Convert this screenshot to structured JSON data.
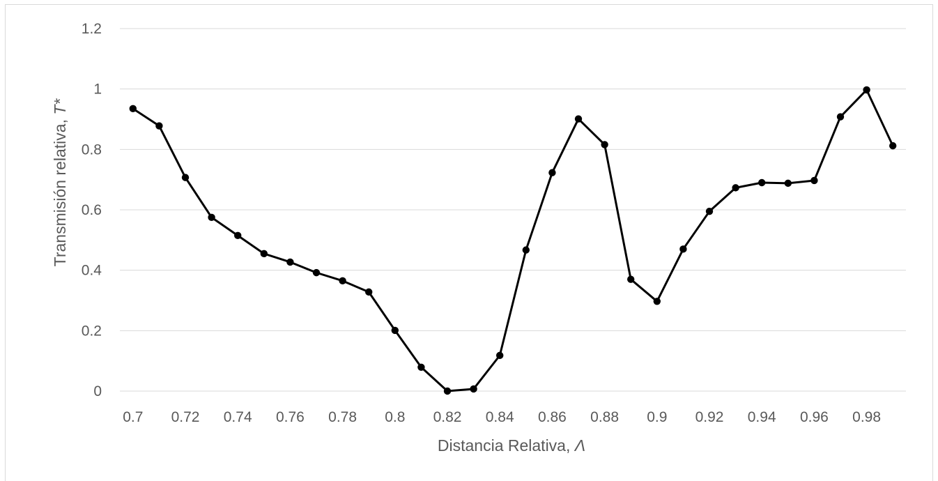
{
  "chart_data": {
    "type": "line",
    "xlabel": "Distancia Relativa, ",
    "xlabel_symbol": "Λ",
    "ylabel": "Transmisión relativa, ",
    "ylabel_symbol": "T*",
    "ylim": [
      0,
      1.2
    ],
    "xlim": [
      0.695,
      0.995
    ],
    "yticks": [
      0,
      0.2,
      0.4,
      0.6,
      0.8,
      1,
      1.2
    ],
    "ytick_labels": [
      "0",
      "0.2",
      "0.4",
      "0.6",
      "0.8",
      "1",
      "1.2"
    ],
    "xticks": [
      0.7,
      0.72,
      0.74,
      0.76,
      0.78,
      0.8,
      0.82,
      0.84,
      0.86,
      0.88,
      0.9,
      0.92,
      0.94,
      0.96,
      0.98
    ],
    "xtick_labels": [
      "0.7",
      "0.72",
      "0.74",
      "0.76",
      "0.78",
      "0.8",
      "0.82",
      "0.84",
      "0.86",
      "0.88",
      "0.9",
      "0.92",
      "0.94",
      "0.96",
      "0.98"
    ],
    "grid": true,
    "series": [
      {
        "color": "#000000",
        "x": [
          0.7,
          0.71,
          0.72,
          0.73,
          0.74,
          0.75,
          0.76,
          0.77,
          0.78,
          0.79,
          0.8,
          0.81,
          0.82,
          0.83,
          0.84,
          0.85,
          0.86,
          0.87,
          0.88,
          0.89,
          0.9,
          0.91,
          0.92,
          0.93,
          0.94,
          0.95,
          0.96,
          0.97,
          0.98,
          0.99
        ],
        "y": [
          0.935,
          0.878,
          0.707,
          0.575,
          0.515,
          0.455,
          0.427,
          0.392,
          0.365,
          0.328,
          0.201,
          0.079,
          0.0,
          0.007,
          0.118,
          0.467,
          0.723,
          0.901,
          0.816,
          0.37,
          0.297,
          0.47,
          0.595,
          0.673,
          0.69,
          0.688,
          0.697,
          0.908,
          0.997,
          0.812
        ]
      }
    ]
  }
}
